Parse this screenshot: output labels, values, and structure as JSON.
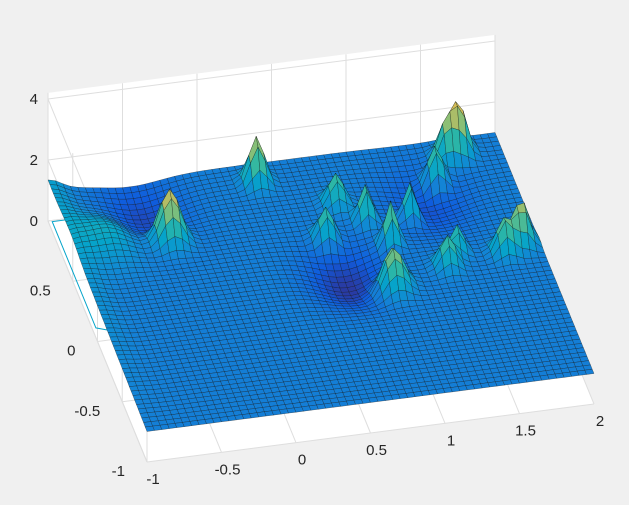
{
  "chart_data": {
    "type": "surface",
    "title": "",
    "xlabel": "",
    "ylabel": "",
    "zlabel": "",
    "grid": true,
    "xlim": [
      -1,
      2
    ],
    "ylim": [
      -1,
      1
    ],
    "zlim": [
      0,
      4.2
    ],
    "x_ticks": [
      {
        "value": -1,
        "label": "-1"
      },
      {
        "value": -0.5,
        "label": "-0.5"
      },
      {
        "value": 0,
        "label": "0"
      },
      {
        "value": 0.5,
        "label": "0.5"
      },
      {
        "value": 1,
        "label": "1"
      },
      {
        "value": 1.5,
        "label": "1.5"
      },
      {
        "value": 2,
        "label": "2"
      }
    ],
    "y_ticks": [
      {
        "value": -1,
        "label": "-1"
      },
      {
        "value": -0.5,
        "label": "-0.5"
      },
      {
        "value": 0,
        "label": "0"
      },
      {
        "value": 0.5,
        "label": "0.5"
      }
    ],
    "z_ticks": [
      {
        "value": 0,
        "label": "0"
      },
      {
        "value": 2,
        "label": "2"
      },
      {
        "value": 4,
        "label": "4"
      }
    ],
    "surface_base_height": 1.0,
    "peaks": [
      {
        "x": -0.35,
        "y": 0.5,
        "height": 1.8,
        "width": 0.07
      },
      {
        "x": -0.75,
        "y": 0.55,
        "height": 0.55,
        "width": 0.15
      },
      {
        "x": 0.35,
        "y": 0.85,
        "height": 1.5,
        "width": 0.05
      },
      {
        "x": 0.8,
        "y": 0.6,
        "height": 1.0,
        "width": 0.05
      },
      {
        "x": 0.65,
        "y": 0.35,
        "height": 1.1,
        "width": 0.05
      },
      {
        "x": 0.95,
        "y": 0.45,
        "height": 1.2,
        "width": 0.04
      },
      {
        "x": 1.05,
        "y": 0.25,
        "height": 1.4,
        "width": 0.04
      },
      {
        "x": 1.5,
        "y": 0.7,
        "height": 1.3,
        "width": 0.05
      },
      {
        "x": 1.62,
        "y": 0.85,
        "height": 1.2,
        "width": 0.05
      },
      {
        "x": 1.72,
        "y": 0.88,
        "height": 1.6,
        "width": 0.05
      },
      {
        "x": 1.25,
        "y": 0.45,
        "height": 1.3,
        "width": 0.04
      },
      {
        "x": 0.95,
        "y": -0.1,
        "height": 1.4,
        "width": 0.07
      },
      {
        "x": 1.35,
        "y": 0.0,
        "height": 1.0,
        "width": 0.05
      },
      {
        "x": 1.45,
        "y": 0.1,
        "height": 0.9,
        "width": 0.04
      },
      {
        "x": 1.75,
        "y": 0.05,
        "height": 1.1,
        "width": 0.05
      },
      {
        "x": 1.88,
        "y": 0.1,
        "height": 1.4,
        "width": 0.05
      }
    ],
    "dips": [
      {
        "x": 0.7,
        "y": 0.05,
        "depth": 0.6,
        "width": 0.18
      },
      {
        "x": 1.4,
        "y": 0.55,
        "depth": 0.4,
        "width": 0.2
      },
      {
        "x": -0.45,
        "y": 0.75,
        "depth": 0.5,
        "width": 0.2
      }
    ],
    "colormap": [
      "#352a87",
      "#0f5cdd",
      "#1481d6",
      "#06a4ca",
      "#2eb7a4",
      "#87bf77",
      "#d1bb59",
      "#fec832",
      "#f9fb0e"
    ],
    "grid_resolution": 60
  }
}
